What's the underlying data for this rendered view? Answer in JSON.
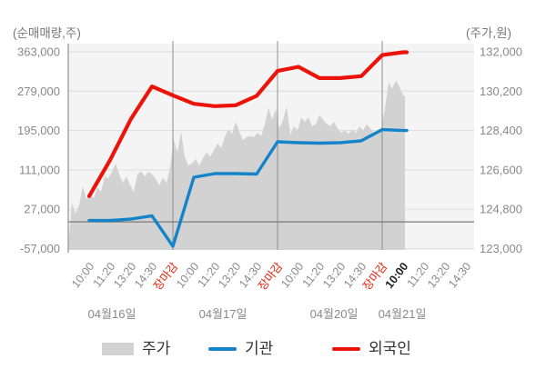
{
  "chart_data": {
    "type": "mixed",
    "description": "Intraday stock price (gray area, right axis, won) with cumulative net buying volume of institutions (blue line) and foreigners (red line) on left axis (shares), over four trading days; day 4 data ends at 10:00.",
    "left_axis": {
      "title": "(순매매량,주)",
      "ticks": [
        363000,
        279000,
        195000,
        111000,
        27000,
        -57000
      ],
      "zero_line": 0
    },
    "right_axis": {
      "title": "(주가,원)",
      "ticks": [
        132000,
        130200,
        128400,
        126600,
        124800,
        123000
      ]
    },
    "days": [
      {
        "label": "04월16일",
        "ticks": [
          {
            "t": "10:00"
          },
          {
            "t": "11:20"
          },
          {
            "t": "13:20"
          },
          {
            "t": "14:30"
          },
          {
            "t": "장마감",
            "style": "close"
          }
        ]
      },
      {
        "label": "04월17일",
        "ticks": [
          {
            "t": "10:00"
          },
          {
            "t": "11:20"
          },
          {
            "t": "13:20"
          },
          {
            "t": "14:30"
          },
          {
            "t": "장마감",
            "style": "close"
          }
        ]
      },
      {
        "label": "04월20일",
        "ticks": [
          {
            "t": "10:00"
          },
          {
            "t": "11:20"
          },
          {
            "t": "13:20"
          },
          {
            "t": "14:30"
          },
          {
            "t": "장마감",
            "style": "close"
          }
        ]
      },
      {
        "label": "04월21일",
        "ticks": [
          {
            "t": "10:00",
            "style": "current"
          },
          {
            "t": "11:20"
          },
          {
            "t": "13:20"
          },
          {
            "t": "14:30"
          }
        ]
      }
    ],
    "line_x_alignment": "Line series points fall on the first 16 time ticks: all five ticks of days 1-3 plus 10:00 of day 4",
    "area_x_alignment": "Price area sampled uniformly from 04월16일 10:00 through 04월21일 10:00",
    "series": [
      {
        "name": "주가",
        "type": "area",
        "axis": "right",
        "color": "#d2d2d2",
        "values": [
          123100,
          125100,
          124600,
          125000,
          125850,
          125250,
          125500,
          125300,
          125800,
          125600,
          126300,
          126200,
          126500,
          126900,
          126400,
          126000,
          126300,
          125900,
          125600,
          126400,
          126550,
          126300,
          126500,
          126400,
          126200,
          125900,
          126250,
          126000,
          126700,
          128000,
          127400,
          128350,
          127200,
          126800,
          126900,
          127100,
          126800,
          127150,
          127400,
          127200,
          127500,
          127800,
          127600,
          128100,
          128450,
          128250,
          128800,
          128350,
          127950,
          128100,
          128150,
          128100,
          128300,
          128150,
          128700,
          129450,
          128900,
          129400,
          128500,
          128900,
          129500,
          128200,
          128600,
          128400,
          129000,
          128800,
          129000,
          128600,
          128700,
          129100,
          128900,
          128700,
          128600,
          128800,
          128500,
          128300,
          128400,
          128250,
          128450,
          128300,
          128600,
          128400,
          128700,
          128500,
          128300,
          128350,
          128500,
          129400,
          130600,
          130300,
          130700,
          130400,
          130000
        ]
      },
      {
        "name": "기관",
        "type": "line",
        "axis": "left",
        "color": "#1483c9",
        "values": [
          3000,
          3000,
          6000,
          13000,
          -52000,
          95000,
          103000,
          103000,
          102000,
          171000,
          169000,
          168000,
          169000,
          173000,
          197000,
          195000
        ]
      },
      {
        "name": "외국인",
        "type": "line",
        "axis": "left",
        "color": "#ec130b",
        "values": [
          55000,
          132000,
          220000,
          289000,
          270000,
          252000,
          247000,
          249000,
          269000,
          322000,
          331000,
          307000,
          307000,
          311000,
          356000,
          362000
        ]
      }
    ],
    "colors": {
      "plot_bg": "#f4f4f4",
      "grid": "#dcdcdc",
      "day_separator": "#8f8f8f",
      "zero_line": "#7a7a7a",
      "axis_line": "#8f8f8f",
      "tick_text": "#898989",
      "title_text": "#777777",
      "close_text": "#e8240e",
      "current_text": "#1c1c1c",
      "legend_text": "#333333"
    },
    "legend_position": "bottom"
  }
}
